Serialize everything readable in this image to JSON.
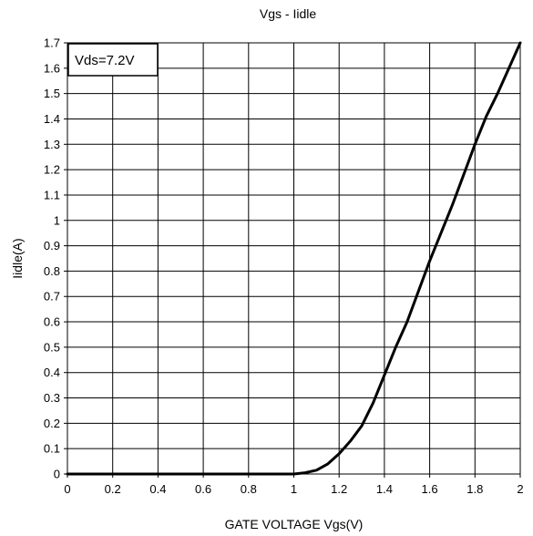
{
  "chart_data": {
    "type": "line",
    "title": "Vgs - Iidle",
    "xlabel": "GATE VOLTAGE Vgs(V)",
    "ylabel": "Iidle(A)",
    "xlim": [
      0,
      2
    ],
    "ylim": [
      0,
      1.7
    ],
    "x_ticks": [
      "0",
      "0.2",
      "0.4",
      "0.6",
      "0.8",
      "1",
      "1.2",
      "1.4",
      "1.6",
      "1.8",
      "2"
    ],
    "y_ticks": [
      "0",
      "0.1",
      "0.2",
      "0.3",
      "0.4",
      "0.5",
      "0.6",
      "0.7",
      "0.8",
      "0.9",
      "1",
      "1.1",
      "1.2",
      "1.3",
      "1.4",
      "1.5",
      "1.6",
      "1.7"
    ],
    "grid": true,
    "annotation": "Vds=7.2V",
    "annotation_position": "top-left",
    "line_color": "#000000",
    "series": [
      {
        "x": [
          0,
          0.2,
          0.4,
          0.6,
          0.8,
          1.0,
          1.05,
          1.1,
          1.15,
          1.2,
          1.25,
          1.3,
          1.35,
          1.4,
          1.45,
          1.5,
          1.55,
          1.6,
          1.65,
          1.7,
          1.75,
          1.8,
          1.85,
          1.9,
          1.95,
          2.0
        ],
        "y": [
          0,
          0,
          0,
          0,
          0,
          0,
          0.005,
          0.015,
          0.04,
          0.08,
          0.13,
          0.19,
          0.28,
          0.39,
          0.5,
          0.6,
          0.72,
          0.84,
          0.95,
          1.06,
          1.18,
          1.3,
          1.41,
          1.5,
          1.6,
          1.7
        ]
      }
    ]
  }
}
